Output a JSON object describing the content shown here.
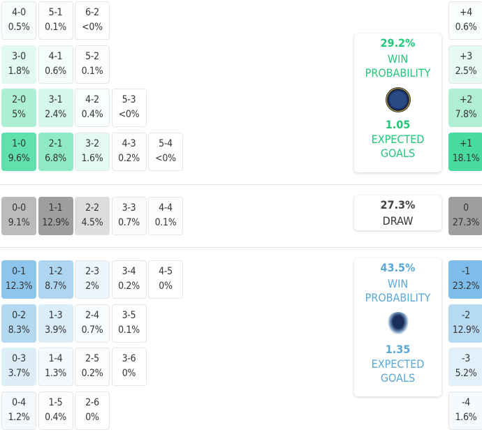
{
  "colors": {
    "home": "#48dba0",
    "home_text": "#22c77a",
    "draw": "#9e9e9e",
    "away": "#7ebde9",
    "away_text": "#5aa8d8"
  },
  "home_scores": [
    [
      {
        "s": "4-0",
        "p": "0.5%"
      },
      {
        "s": "5-1",
        "p": "0.1%"
      },
      {
        "s": "6-2",
        "p": "<0%"
      }
    ],
    [
      {
        "s": "3-0",
        "p": "1.8%"
      },
      {
        "s": "4-1",
        "p": "0.6%"
      },
      {
        "s": "5-2",
        "p": "0.1%"
      }
    ],
    [
      {
        "s": "2-0",
        "p": "5%"
      },
      {
        "s": "3-1",
        "p": "2.4%"
      },
      {
        "s": "4-2",
        "p": "0.4%"
      },
      {
        "s": "5-3",
        "p": "<0%"
      }
    ],
    [
      {
        "s": "1-0",
        "p": "9.6%"
      },
      {
        "s": "2-1",
        "p": "6.8%"
      },
      {
        "s": "3-2",
        "p": "1.6%"
      },
      {
        "s": "4-3",
        "p": "0.2%"
      },
      {
        "s": "5-4",
        "p": "<0%"
      }
    ]
  ],
  "draw_scores": [
    [
      {
        "s": "0-0",
        "p": "9.1%"
      },
      {
        "s": "1-1",
        "p": "12.9%"
      },
      {
        "s": "2-2",
        "p": "4.5%"
      },
      {
        "s": "3-3",
        "p": "0.7%"
      },
      {
        "s": "4-4",
        "p": "0.1%"
      }
    ]
  ],
  "away_scores": [
    [
      {
        "s": "0-1",
        "p": "12.3%"
      },
      {
        "s": "1-2",
        "p": "8.7%"
      },
      {
        "s": "2-3",
        "p": "2%"
      },
      {
        "s": "3-4",
        "p": "0.2%"
      },
      {
        "s": "4-5",
        "p": "0%"
      }
    ],
    [
      {
        "s": "0-2",
        "p": "8.3%"
      },
      {
        "s": "1-3",
        "p": "3.9%"
      },
      {
        "s": "2-4",
        "p": "0.7%"
      },
      {
        "s": "3-5",
        "p": "0.1%"
      }
    ],
    [
      {
        "s": "0-3",
        "p": "3.7%"
      },
      {
        "s": "1-4",
        "p": "1.3%"
      },
      {
        "s": "2-5",
        "p": "0.2%"
      },
      {
        "s": "3-6",
        "p": "0%"
      }
    ],
    [
      {
        "s": "0-4",
        "p": "1.2%"
      },
      {
        "s": "1-5",
        "p": "0.4%"
      },
      {
        "s": "2-6",
        "p": "0%"
      }
    ]
  ],
  "home_margins": [
    {
      "s": "+4",
      "p": "0.6%"
    },
    {
      "s": "+3",
      "p": "2.5%"
    },
    {
      "s": "+2",
      "p": "7.8%"
    },
    {
      "s": "+1",
      "p": "18.1%"
    }
  ],
  "draw_margin": [
    {
      "s": "0",
      "p": "27.3%"
    }
  ],
  "away_margins": [
    {
      "s": "-1",
      "p": "23.2%"
    },
    {
      "s": "-2",
      "p": "12.9%"
    },
    {
      "s": "-3",
      "p": "5.2%"
    },
    {
      "s": "-4",
      "p": "1.6%"
    }
  ],
  "home_panel": {
    "win_pct": "29.2%",
    "win_label": "WIN PROBABILITY",
    "xg": "1.05",
    "xg_label": "EXPECTED GOALS",
    "logo": "home-team-crest"
  },
  "draw_panel": {
    "pct": "27.3%",
    "label": "DRAW"
  },
  "away_panel": {
    "win_pct": "43.5%",
    "win_label": "WIN PROBABILITY",
    "xg": "1.35",
    "xg_label": "EXPECTED GOALS",
    "logo": "away-team-eagle-crest"
  }
}
